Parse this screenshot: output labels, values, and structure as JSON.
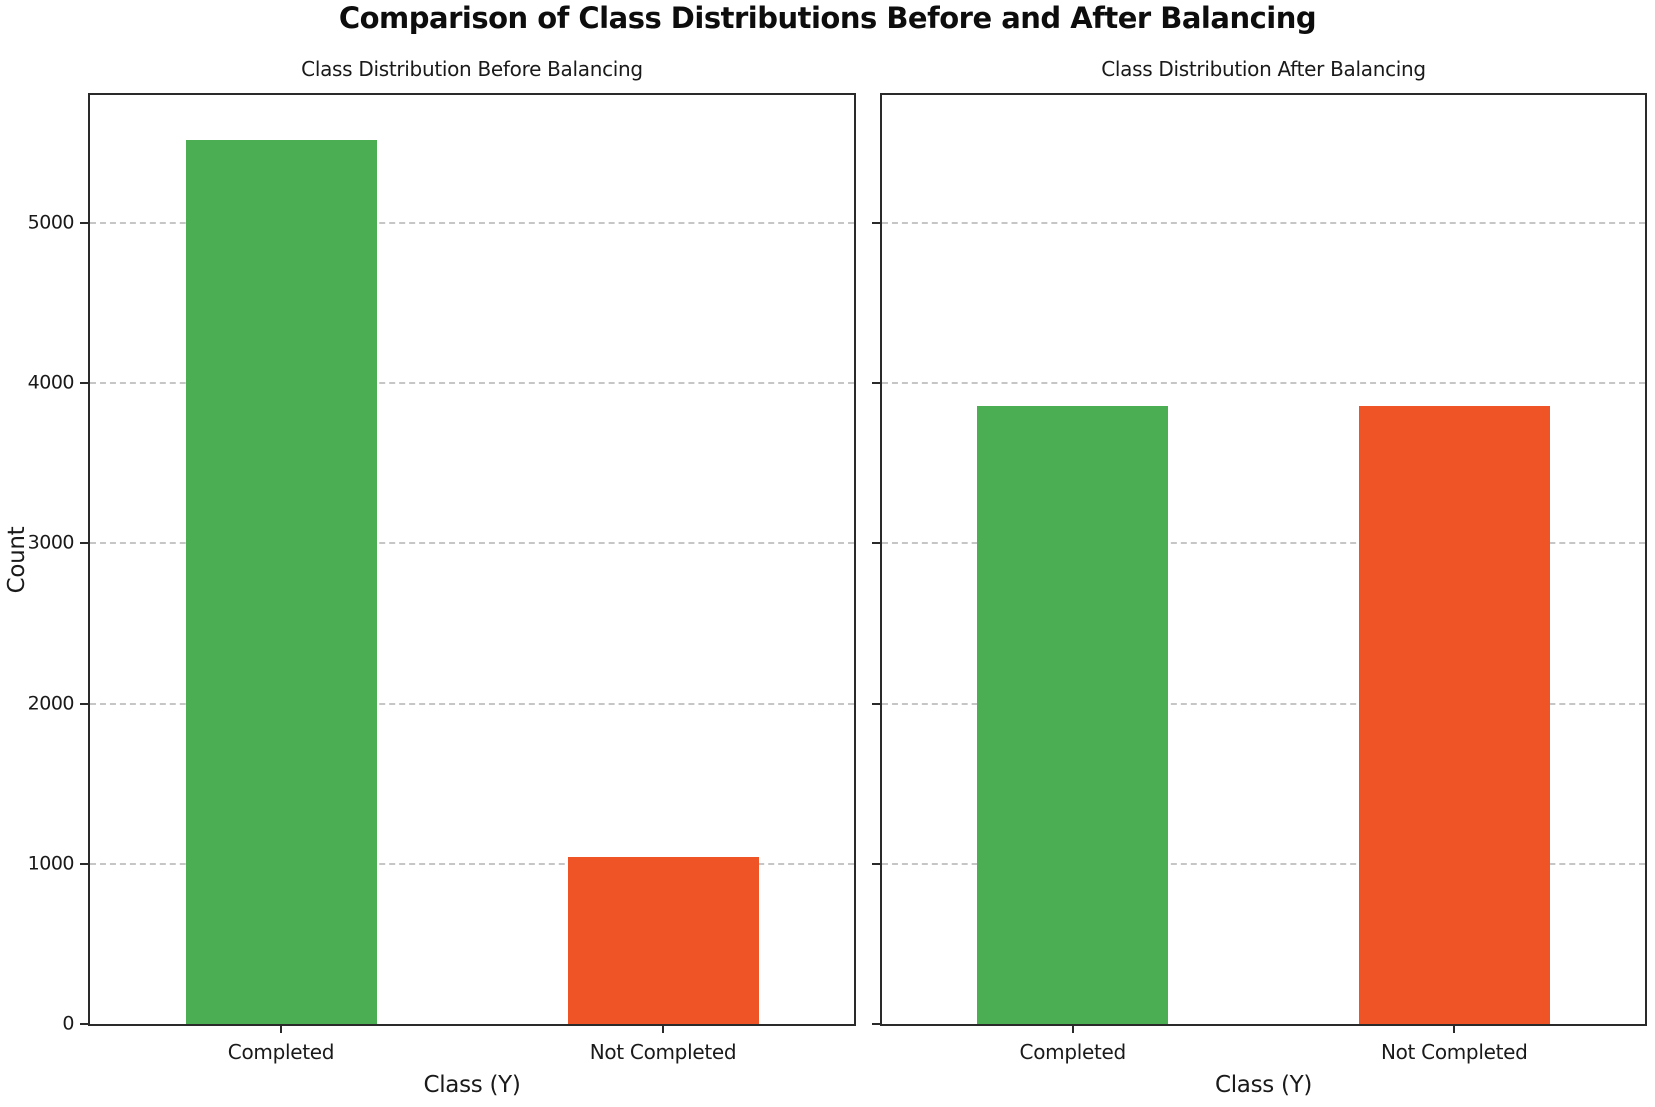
{
  "figure": {
    "title": "Comparison of Class Distributions Before and After Balancing",
    "background_color": "#ffffff",
    "spine_color": "#2a2a2a",
    "gridline_color": "#c6c6c6",
    "text_color": "#1a1a1a"
  },
  "chart_data": [
    {
      "type": "bar",
      "title": "Class Distribution Before Balancing",
      "xlabel": "Class (Y)",
      "ylabel": "Count",
      "categories": [
        "Completed",
        "Not Completed"
      ],
      "values": [
        5520,
        1040
      ],
      "colors": [
        "#4bae52",
        "#ee5426"
      ],
      "ylim": [
        0,
        5800
      ],
      "yticks": [
        0,
        1000,
        2000,
        3000,
        4000,
        5000
      ],
      "show_ytick_labels": true,
      "grid": "horizontal-dashed",
      "legend": "none",
      "bar_centers_fraction": [
        0.25,
        0.75
      ],
      "bar_width_fraction": 0.25
    },
    {
      "type": "bar",
      "title": "Class Distribution After Balancing",
      "xlabel": "Class (Y)",
      "ylabel": "",
      "categories": [
        "Completed",
        "Not Completed"
      ],
      "values": [
        3860,
        3860
      ],
      "colors": [
        "#4bae52",
        "#ee5426"
      ],
      "ylim": [
        0,
        5800
      ],
      "yticks": [
        0,
        1000,
        2000,
        3000,
        4000,
        5000
      ],
      "show_ytick_labels": false,
      "grid": "horizontal-dashed",
      "legend": "none",
      "bar_centers_fraction": [
        0.25,
        0.75
      ],
      "bar_width_fraction": 0.25
    }
  ]
}
